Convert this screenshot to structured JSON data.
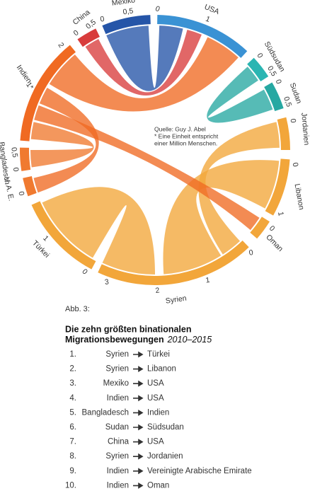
{
  "nodes": [
    {
      "label": "USA",
      "color": "#3a92d4",
      "ticks": [
        "0",
        "1"
      ]
    },
    {
      "label": "Südsudan",
      "color": "#2ab5b2",
      "ticks": [
        "0",
        "0,5"
      ]
    },
    {
      "label": "Sudan",
      "color": "#26a8a2",
      "ticks": [
        "0",
        "0,5"
      ]
    },
    {
      "label": "Jordanien",
      "color": "#f2a63a",
      "ticks": [
        "0"
      ]
    },
    {
      "label": "Libanon",
      "color": "#f2a63a",
      "ticks": [
        "0",
        "1"
      ]
    },
    {
      "label": "Oman",
      "color": "#f2a63a",
      "ticks": [
        "0"
      ]
    },
    {
      "label": "Syrien",
      "color": "#f2a63a",
      "ticks": [
        "0",
        "1",
        "2",
        "3"
      ]
    },
    {
      "label": "Türkei",
      "color": "#f2a63a",
      "ticks": [
        "0",
        "1"
      ]
    },
    {
      "label": "V. A. E.",
      "color": "#f07a30",
      "ticks": [
        "0"
      ]
    },
    {
      "label": "Bangladesch",
      "color": "#f07a30",
      "ticks": [
        "0",
        "0,5"
      ]
    },
    {
      "label": "Indien",
      "color": "#f06a22",
      "ticks": [
        "1*",
        "2"
      ]
    },
    {
      "label": "China",
      "color": "#d83c3c",
      "ticks": [
        "0",
        "0,5"
      ]
    },
    {
      "label": "Mexiko",
      "color": "#2555a8",
      "ticks": [
        "0",
        "0,5"
      ]
    }
  ],
  "note": [
    "Quelle: Guy J. Abel",
    "* Eine Einheit entspricht",
    "einer Million Menschen."
  ],
  "figure": "Abb. 3:",
  "title": [
    "Die zehn größten binationalen",
    "Migrationsbewegungen"
  ],
  "period": "2010–2015",
  "list": [
    {
      "num": "1.",
      "from": "Syrien",
      "to": "Türkei"
    },
    {
      "num": "2.",
      "from": "Syrien",
      "to": "Libanon"
    },
    {
      "num": "3.",
      "from": "Mexiko",
      "to": "USA"
    },
    {
      "num": "4.",
      "from": "Indien",
      "to": "USA"
    },
    {
      "num": "5.",
      "from": "Bangladesch",
      "to": "Indien"
    },
    {
      "num": "6.",
      "from": "Sudan",
      "to": "Südsudan"
    },
    {
      "num": "7.",
      "from": "China",
      "to": "USA"
    },
    {
      "num": "8.",
      "from": "Syrien",
      "to": "Jordanien"
    },
    {
      "num": "9.",
      "from": "Indien",
      "to": "Vereinigte Arabische Emirate"
    },
    {
      "num": "10.",
      "from": "Indien",
      "to": "Oman"
    }
  ]
}
